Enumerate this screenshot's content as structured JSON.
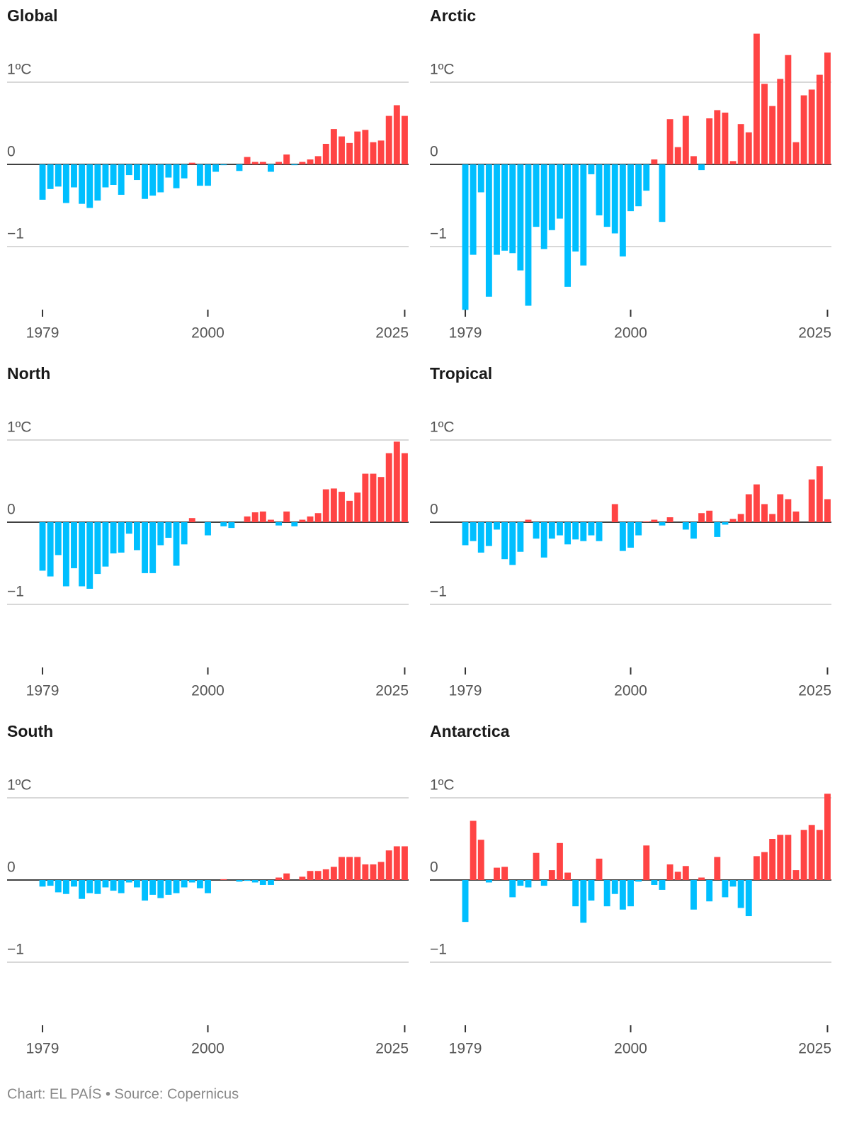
{
  "chart_data": [
    {
      "type": "bar",
      "title": "Global",
      "x": [
        1979,
        1980,
        1981,
        1982,
        1983,
        1984,
        1985,
        1986,
        1987,
        1988,
        1989,
        1990,
        1991,
        1992,
        1993,
        1994,
        1995,
        1996,
        1997,
        1998,
        1999,
        2000,
        2001,
        2002,
        2003,
        2004,
        2005,
        2006,
        2007,
        2008,
        2009,
        2010,
        2011,
        2012,
        2013,
        2014,
        2015,
        2016,
        2017,
        2018,
        2019,
        2020,
        2021,
        2022,
        2023,
        2024,
        2025
      ],
      "values": [
        -0.43,
        -0.3,
        -0.27,
        -0.47,
        -0.28,
        -0.48,
        -0.53,
        -0.44,
        -0.28,
        -0.25,
        -0.37,
        -0.13,
        -0.19,
        -0.42,
        -0.38,
        -0.34,
        -0.16,
        -0.29,
        -0.17,
        0.02,
        -0.26,
        -0.26,
        -0.09,
        -0.01,
        0,
        -0.08,
        0.09,
        0.03,
        0.03,
        -0.09,
        0.03,
        0.12,
        -0.01,
        0.03,
        0.06,
        0.1,
        0.25,
        0.43,
        0.34,
        0.26,
        0.4,
        0.42,
        0.27,
        0.29,
        0.59,
        0.72,
        0.59
      ],
      "xlim": [
        1974.5,
        2025.5
      ],
      "xticks": [
        1979,
        2000,
        2025
      ],
      "ylim": [
        -1.8,
        1.6
      ],
      "yticks": [
        {
          "value": 1,
          "label": "1ºC"
        },
        0,
        {
          "value": -1,
          "label": "−1"
        }
      ],
      "grid": true,
      "positive_color": "#ff4444",
      "negative_color": "#00bfff"
    },
    {
      "type": "bar",
      "title": "Arctic",
      "x": [
        1979,
        1980,
        1981,
        1982,
        1983,
        1984,
        1985,
        1986,
        1987,
        1988,
        1989,
        1990,
        1991,
        1992,
        1993,
        1994,
        1995,
        1996,
        1997,
        1998,
        1999,
        2000,
        2001,
        2002,
        2003,
        2004,
        2005,
        2006,
        2007,
        2008,
        2009,
        2010,
        2011,
        2012,
        2013,
        2014,
        2015,
        2016,
        2017,
        2018,
        2019,
        2020,
        2021,
        2022,
        2023,
        2024,
        2025
      ],
      "values": [
        -1.77,
        -1.1,
        -0.34,
        -1.61,
        -1.1,
        -1.05,
        -1.08,
        -1.29,
        -1.72,
        -0.76,
        -1.03,
        -0.8,
        -0.66,
        -1.49,
        -1.06,
        -1.23,
        -0.12,
        -0.62,
        -0.76,
        -0.84,
        -1.12,
        -0.57,
        -0.51,
        -0.32,
        0.06,
        -0.7,
        0.55,
        0.21,
        0.59,
        0.1,
        -0.07,
        0.56,
        0.66,
        0.63,
        0.04,
        0.49,
        0.39,
        1.59,
        0.98,
        0.71,
        1.04,
        1.33,
        0.27,
        0.84,
        0.91,
        1.09,
        1.36
      ],
      "xlim": [
        1974.5,
        2025.5
      ],
      "xticks": [
        1979,
        2000,
        2025
      ],
      "ylim": [
        -1.8,
        1.6
      ],
      "yticks": [
        {
          "value": 1,
          "label": "1ºC"
        },
        0,
        {
          "value": -1,
          "label": "−1"
        }
      ],
      "grid": true,
      "positive_color": "#ff4444",
      "negative_color": "#00bfff"
    },
    {
      "type": "bar",
      "title": "North",
      "x": [
        1979,
        1980,
        1981,
        1982,
        1983,
        1984,
        1985,
        1986,
        1987,
        1988,
        1989,
        1990,
        1991,
        1992,
        1993,
        1994,
        1995,
        1996,
        1997,
        1998,
        1999,
        2000,
        2001,
        2002,
        2003,
        2004,
        2005,
        2006,
        2007,
        2008,
        2009,
        2010,
        2011,
        2012,
        2013,
        2014,
        2015,
        2016,
        2017,
        2018,
        2019,
        2020,
        2021,
        2022,
        2023,
        2024,
        2025
      ],
      "values": [
        -0.59,
        -0.66,
        -0.4,
        -0.78,
        -0.56,
        -0.78,
        -0.81,
        -0.63,
        -0.54,
        -0.38,
        -0.37,
        -0.14,
        -0.34,
        -0.62,
        -0.62,
        -0.28,
        -0.19,
        -0.53,
        -0.27,
        0.05,
        0,
        -0.16,
        0,
        -0.05,
        -0.07,
        0,
        0.07,
        0.12,
        0.13,
        0.03,
        -0.04,
        0.13,
        -0.05,
        0.03,
        0.07,
        0.11,
        0.4,
        0.41,
        0.37,
        0.26,
        0.36,
        0.59,
        0.59,
        0.55,
        0.84,
        0.98,
        0.84
      ],
      "xlim": [
        1974.5,
        2025.5
      ],
      "xticks": [
        1979,
        2000,
        2025
      ],
      "ylim": [
        -1.8,
        1.6
      ],
      "yticks": [
        {
          "value": 1,
          "label": "1ºC"
        },
        0,
        {
          "value": -1,
          "label": "−1"
        }
      ],
      "grid": true,
      "positive_color": "#ff4444",
      "negative_color": "#00bfff"
    },
    {
      "type": "bar",
      "title": "Tropical",
      "x": [
        1979,
        1980,
        1981,
        1982,
        1983,
        1984,
        1985,
        1986,
        1987,
        1988,
        1989,
        1990,
        1991,
        1992,
        1993,
        1994,
        1995,
        1996,
        1997,
        1998,
        1999,
        2000,
        2001,
        2002,
        2003,
        2004,
        2005,
        2006,
        2007,
        2008,
        2009,
        2010,
        2011,
        2012,
        2013,
        2014,
        2015,
        2016,
        2017,
        2018,
        2019,
        2020,
        2021,
        2022,
        2023,
        2024,
        2025
      ],
      "values": [
        -0.28,
        -0.23,
        -0.37,
        -0.29,
        -0.09,
        -0.45,
        -0.52,
        -0.36,
        0.03,
        -0.2,
        -0.43,
        -0.2,
        -0.16,
        -0.27,
        -0.21,
        -0.23,
        -0.16,
        -0.23,
        0,
        0.22,
        -0.35,
        -0.31,
        -0.16,
        0.01,
        0.03,
        -0.04,
        0.06,
        0,
        -0.09,
        -0.2,
        0.11,
        0.14,
        -0.18,
        -0.03,
        0.04,
        0.1,
        0.34,
        0.46,
        0.22,
        0.1,
        0.34,
        0.28,
        0.13,
        0,
        0.52,
        0.68,
        0.28
      ],
      "xlim": [
        1974.5,
        2025.5
      ],
      "xticks": [
        1979,
        2000,
        2025
      ],
      "ylim": [
        -1.8,
        1.6
      ],
      "yticks": [
        {
          "value": 1,
          "label": "1ºC"
        },
        0,
        {
          "value": -1,
          "label": "−1"
        }
      ],
      "grid": true,
      "positive_color": "#ff4444",
      "negative_color": "#00bfff"
    },
    {
      "type": "bar",
      "title": "South",
      "x": [
        1979,
        1980,
        1981,
        1982,
        1983,
        1984,
        1985,
        1986,
        1987,
        1988,
        1989,
        1990,
        1991,
        1992,
        1993,
        1994,
        1995,
        1996,
        1997,
        1998,
        1999,
        2000,
        2001,
        2002,
        2003,
        2004,
        2005,
        2006,
        2007,
        2008,
        2009,
        2010,
        2011,
        2012,
        2013,
        2014,
        2015,
        2016,
        2017,
        2018,
        2019,
        2020,
        2021,
        2022,
        2023,
        2024,
        2025
      ],
      "values": [
        -0.08,
        -0.07,
        -0.15,
        -0.17,
        -0.08,
        -0.23,
        -0.16,
        -0.17,
        -0.09,
        -0.13,
        -0.16,
        -0.03,
        -0.09,
        -0.25,
        -0.18,
        -0.22,
        -0.18,
        -0.16,
        -0.09,
        -0.03,
        -0.1,
        -0.16,
        0,
        0.01,
        0,
        -0.02,
        -0.01,
        -0.03,
        -0.06,
        -0.06,
        0.03,
        0.08,
        0,
        0.04,
        0.11,
        0.11,
        0.13,
        0.16,
        0.28,
        0.28,
        0.28,
        0.19,
        0.19,
        0.22,
        0.36,
        0.41,
        0.41
      ],
      "xlim": [
        1974.5,
        2025.5
      ],
      "xticks": [
        1979,
        2000,
        2025
      ],
      "ylim": [
        -1.8,
        1.6
      ],
      "yticks": [
        {
          "value": 1,
          "label": "1ºC"
        },
        0,
        {
          "value": -1,
          "label": "−1"
        }
      ],
      "grid": true,
      "positive_color": "#ff4444",
      "negative_color": "#00bfff"
    },
    {
      "type": "bar",
      "title": "Antarctica",
      "x": [
        1979,
        1980,
        1981,
        1982,
        1983,
        1984,
        1985,
        1986,
        1987,
        1988,
        1989,
        1990,
        1991,
        1992,
        1993,
        1994,
        1995,
        1996,
        1997,
        1998,
        1999,
        2000,
        2001,
        2002,
        2003,
        2004,
        2005,
        2006,
        2007,
        2008,
        2009,
        2010,
        2011,
        2012,
        2013,
        2014,
        2015,
        2016,
        2017,
        2018,
        2019,
        2020,
        2021,
        2022,
        2023,
        2024,
        2025
      ],
      "values": [
        -0.51,
        0.72,
        0.49,
        -0.03,
        0.15,
        0.16,
        -0.21,
        -0.07,
        -0.09,
        0.33,
        -0.07,
        0.12,
        0.45,
        0.09,
        -0.32,
        -0.52,
        -0.25,
        0.26,
        -0.32,
        -0.17,
        -0.36,
        -0.32,
        -0.02,
        0.42,
        -0.06,
        -0.12,
        0.19,
        0.1,
        0.17,
        -0.36,
        0.03,
        -0.26,
        0.28,
        -0.21,
        -0.08,
        -0.34,
        -0.44,
        0.29,
        0.34,
        0.5,
        0.55,
        0.55,
        0.12,
        0.61,
        0.67,
        0.61,
        1.05
      ],
      "xlim": [
        1974.5,
        2025.5
      ],
      "xticks": [
        1979,
        2000,
        2025
      ],
      "ylim": [
        -1.8,
        1.6
      ],
      "yticks": [
        {
          "value": 1,
          "label": "1ºC"
        },
        0,
        {
          "value": -1,
          "label": "−1"
        }
      ],
      "grid": true,
      "positive_color": "#ff4444",
      "negative_color": "#00bfff"
    }
  ],
  "credit": "Chart: EL PAÍS • Source: Copernicus"
}
